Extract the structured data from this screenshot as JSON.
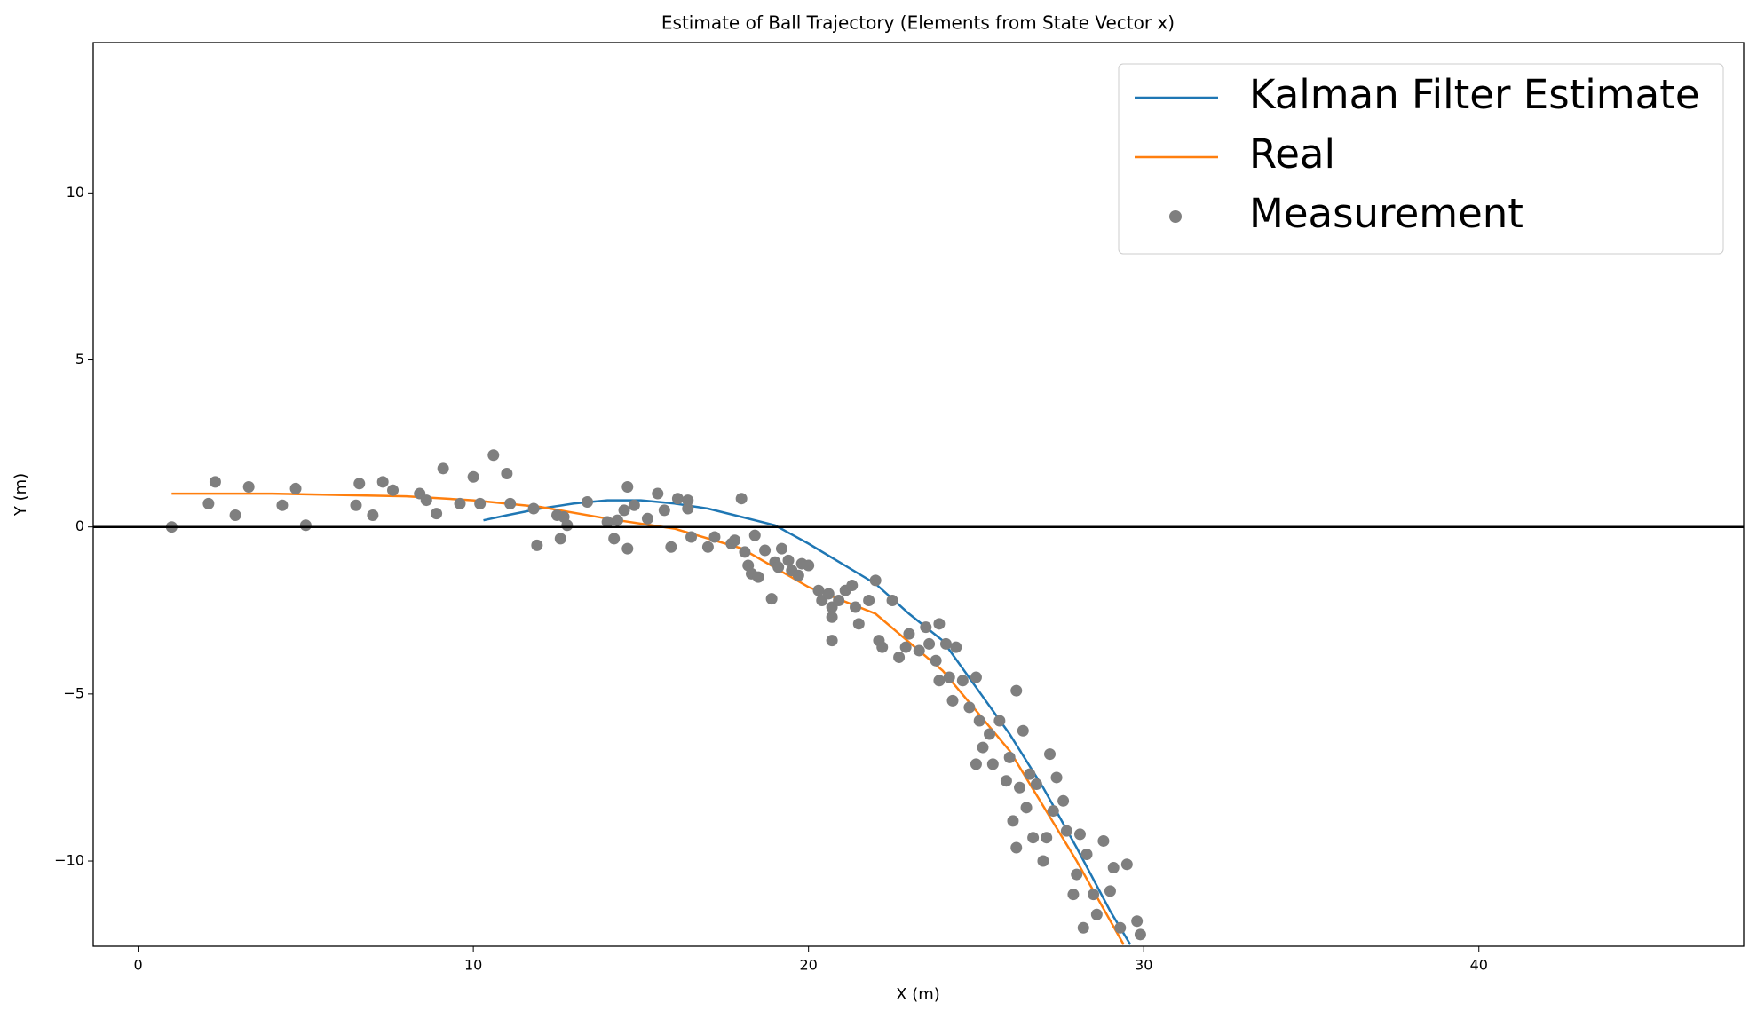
{
  "chart_data": {
    "type": "line",
    "title": "Estimate of Ball Trajectory (Elements from State Vector x)",
    "xlabel": "X (m)",
    "ylabel": "Y (m)",
    "xlim": [
      -1.34,
      47.9
    ],
    "ylim": [
      -12.55,
      14.5
    ],
    "xticks": [
      0,
      10,
      20,
      30,
      40
    ],
    "yticks": [
      {
        "value": -10,
        "label": "−10"
      },
      {
        "value": -5,
        "label": "−5"
      },
      0,
      5,
      10
    ],
    "hline": 0,
    "grid": false,
    "legend": "upper right",
    "series": [
      {
        "name": "Kalman Filter Estimate",
        "type": "line",
        "color": "#1f77b4",
        "x": [
          10.3,
          11,
          12,
          13,
          14,
          15,
          16,
          17,
          18,
          19,
          20,
          21,
          22,
          23,
          24,
          25,
          26,
          27,
          28,
          29,
          29.6
        ],
        "values": [
          0.2,
          0.35,
          0.55,
          0.7,
          0.8,
          0.8,
          0.7,
          0.55,
          0.3,
          0.05,
          -0.5,
          -1.1,
          -1.7,
          -2.6,
          -3.4,
          -4.8,
          -6.2,
          -7.8,
          -9.6,
          -11.5,
          -12.5
        ]
      },
      {
        "name": "Real",
        "type": "line",
        "color": "#ff7f0e",
        "x": [
          1,
          4,
          8,
          10,
          12,
          14,
          16,
          18,
          20,
          22,
          24,
          26,
          28,
          29.4
        ],
        "values": [
          1,
          1,
          0.92,
          0.8,
          0.6,
          0.25,
          -0.05,
          -0.64,
          -1.8,
          -2.6,
          -4.3,
          -6.7,
          -10,
          -12.5
        ]
      },
      {
        "name": "Measurement",
        "type": "scatter",
        "color": "#7f7f7f",
        "x": [
          1,
          2.1,
          2.3,
          2.9,
          3.3,
          4.3,
          4.7,
          5,
          6.5,
          6.6,
          7,
          7.3,
          7.6,
          8.4,
          8.6,
          8.9,
          9.1,
          9.6,
          10,
          10.2,
          10.6,
          11,
          11.1,
          11.8,
          11.9,
          12.5,
          12.6,
          12.7,
          12.8,
          13.4,
          14,
          14.2,
          14.3,
          14.5,
          14.6,
          14.6,
          14.8,
          15.2,
          15.5,
          15.7,
          15.9,
          16.1,
          16.4,
          16.4,
          16.5,
          17,
          17.2,
          17.7,
          17.8,
          18,
          18.1,
          18.2,
          18.3,
          18.4,
          18.5,
          18.7,
          18.9,
          19,
          19.1,
          19.2,
          19.4,
          19.5,
          19.7,
          19.8,
          20,
          20.3,
          20.4,
          20.6,
          20.7,
          20.7,
          20.7,
          20.9,
          21.1,
          21.3,
          21.4,
          21.5,
          21.8,
          22,
          22.1,
          22.2,
          22.5,
          22.7,
          22.9,
          23,
          23.3,
          23.5,
          23.6,
          23.8,
          23.9,
          23.9,
          24.1,
          24.2,
          24.3,
          24.4,
          24.6,
          24.8,
          25,
          25,
          25.1,
          25.2,
          25.4,
          25.5,
          25.7,
          25.9,
          26,
          26.1,
          26.2,
          26.2,
          26.3,
          26.4,
          26.5,
          26.6,
          26.7,
          26.8,
          27,
          27.1,
          27.2,
          27.3,
          27.4,
          27.6,
          27.7,
          27.9,
          28,
          28.1,
          28.2,
          28.3,
          28.5,
          28.6,
          28.8,
          29,
          29.1,
          29.3,
          29.5,
          29.8,
          29.9
        ],
        "values": [
          0,
          0.7,
          1.35,
          0.35,
          1.2,
          0.65,
          1.15,
          0.05,
          0.65,
          1.3,
          0.35,
          1.35,
          1.1,
          1.0,
          0.8,
          0.4,
          1.75,
          0.7,
          1.5,
          0.7,
          2.15,
          1.6,
          0.7,
          0.55,
          -0.55,
          0.35,
          -0.35,
          0.3,
          0.05,
          0.75,
          0.15,
          -0.35,
          0.2,
          0.5,
          1.2,
          -0.65,
          0.65,
          0.25,
          1.0,
          0.5,
          -0.6,
          0.85,
          0.8,
          0.55,
          -0.3,
          -0.6,
          -0.3,
          -0.5,
          -0.4,
          0.85,
          -0.75,
          -1.15,
          -1.4,
          -0.25,
          -1.5,
          -0.7,
          -2.15,
          -1.05,
          -1.2,
          -0.65,
          -1.0,
          -1.3,
          -1.45,
          -1.1,
          -1.15,
          -1.9,
          -2.2,
          -2.0,
          -2.4,
          -2.7,
          -3.4,
          -2.2,
          -1.9,
          -1.75,
          -2.4,
          -2.9,
          -2.2,
          -1.6,
          -3.4,
          -3.6,
          -2.2,
          -3.9,
          -3.6,
          -3.2,
          -3.7,
          -3.0,
          -3.5,
          -4.0,
          -4.6,
          -2.9,
          -3.5,
          -4.5,
          -5.2,
          -3.6,
          -4.6,
          -5.4,
          -4.5,
          -7.1,
          -5.8,
          -6.6,
          -6.2,
          -7.1,
          -5.8,
          -7.6,
          -6.9,
          -8.8,
          -4.9,
          -9.6,
          -7.8,
          -6.1,
          -8.4,
          -7.4,
          -9.3,
          -7.7,
          -10.0,
          -9.3,
          -6.8,
          -8.5,
          -7.5,
          -8.2,
          -9.1,
          -11.0,
          -10.4,
          -9.2,
          -12.0,
          -9.8,
          -11.0,
          -11.6,
          -9.4,
          -10.9,
          -10.2,
          -12.0,
          -10.1,
          -11.8,
          -12.2
        ]
      }
    ]
  }
}
